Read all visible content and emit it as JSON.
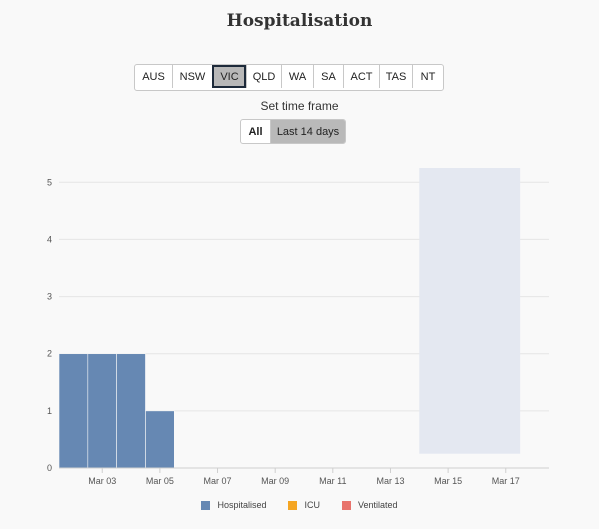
{
  "header": {
    "title": "Hospitalisation"
  },
  "states": [
    {
      "label": "AUS",
      "active": false
    },
    {
      "label": "NSW",
      "active": false
    },
    {
      "label": "VIC",
      "active": true
    },
    {
      "label": "QLD",
      "active": false
    },
    {
      "label": "WA",
      "active": false
    },
    {
      "label": "SA",
      "active": false
    },
    {
      "label": "ACT",
      "active": false
    },
    {
      "label": "TAS",
      "active": false
    },
    {
      "label": "NT",
      "active": false
    }
  ],
  "timeframe": {
    "label": "Set time frame",
    "options": [
      {
        "label": "All",
        "active": false
      },
      {
        "label": "Last 14 days",
        "active": true
      }
    ]
  },
  "colors": {
    "hospitalised": "#6688b3",
    "icu": "#f5a623",
    "ventilated": "#e8736c",
    "shade": "#e4e8f1"
  },
  "chart_data": {
    "type": "bar",
    "x": [
      "Mar 02",
      "Mar 03",
      "Mar 04",
      "Mar 05",
      "Mar 06",
      "Mar 07",
      "Mar 08",
      "Mar 09",
      "Mar 10",
      "Mar 11",
      "Mar 12",
      "Mar 13",
      "Mar 14",
      "Mar 15",
      "Mar 16",
      "Mar 17",
      "Mar 18"
    ],
    "series": [
      {
        "name": "Hospitalised",
        "color": "#6688b3",
        "values": [
          2,
          2,
          2,
          1,
          0,
          0,
          0,
          0,
          0,
          0,
          0,
          0,
          0,
          0,
          0,
          0,
          0
        ]
      },
      {
        "name": "ICU",
        "color": "#f5a623",
        "values": [
          0,
          0,
          0,
          0,
          0,
          0,
          0,
          0,
          0,
          0,
          0,
          0,
          0,
          0,
          0,
          0,
          0
        ]
      },
      {
        "name": "Ventilated",
        "color": "#e8736c",
        "values": [
          0,
          0,
          0,
          0,
          0,
          0,
          0,
          0,
          0,
          0,
          0,
          0,
          0,
          0,
          0,
          0,
          0
        ]
      }
    ],
    "xticks": [
      "Mar 03",
      "Mar 05",
      "Mar 07",
      "Mar 09",
      "Mar 11",
      "Mar 13",
      "Mar 15",
      "Mar 17"
    ],
    "yticks": [
      0,
      1,
      2,
      3,
      4,
      5
    ],
    "ylim": [
      0,
      5.25
    ],
    "shaded_range": [
      "Mar 15",
      "Mar 18"
    ],
    "grid": true,
    "legend": "bottom"
  }
}
